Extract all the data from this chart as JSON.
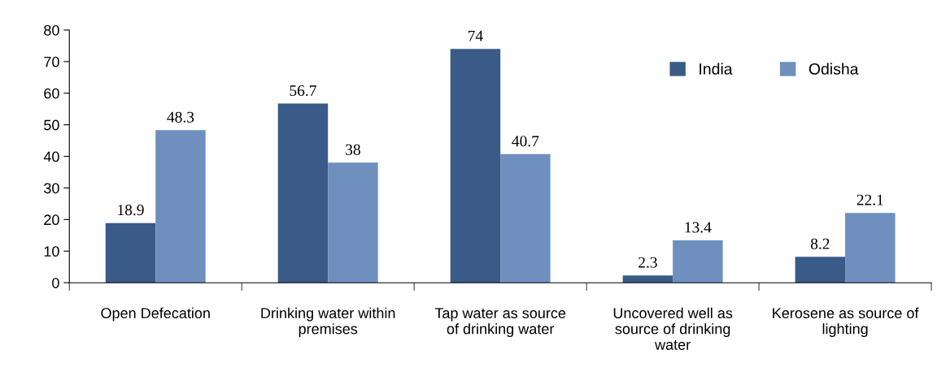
{
  "chart_data": {
    "type": "bar",
    "categories": [
      "Open Defecation",
      "Drinking water within\npremises",
      "Tap water as source\nof drinking water",
      "Uncovered well as\nsource of drinking\nwater",
      "Kerosene as source of\nlighting"
    ],
    "series": [
      {
        "name": "India",
        "color": "#3a5a87",
        "values": [
          18.9,
          56.7,
          74,
          2.3,
          8.2
        ]
      },
      {
        "name": "Odisha",
        "color": "#6f8fbf",
        "values": [
          48.3,
          38,
          40.7,
          13.4,
          22.1
        ]
      }
    ],
    "ylim": [
      0,
      80
    ],
    "yticks": [
      0,
      10,
      20,
      30,
      40,
      50,
      60,
      70,
      80
    ],
    "data_labels": true,
    "grid": false,
    "legend": "top right"
  }
}
